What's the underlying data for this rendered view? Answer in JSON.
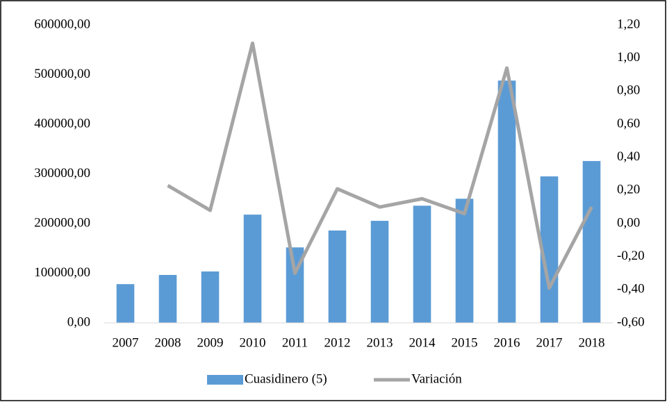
{
  "chart_data": {
    "type": "bar_line",
    "categories": [
      "2007",
      "2008",
      "2009",
      "2010",
      "2011",
      "2012",
      "2013",
      "2014",
      "2015",
      "2016",
      "2017",
      "2018"
    ],
    "series": [
      {
        "name": "Cuasidinero (5)",
        "type": "bar",
        "color": "#5b9bd5",
        "values": [
          78000,
          96500,
          103500,
          218000,
          152000,
          186000,
          205500,
          236000,
          250000,
          488000,
          295000,
          326000
        ]
      },
      {
        "name": "Variación",
        "type": "line",
        "axis": "y2",
        "color": "#a5a5a5",
        "values": [
          null,
          0.23,
          0.08,
          1.09,
          -0.3,
          0.21,
          0.1,
          0.15,
          0.06,
          0.94,
          -0.39,
          0.1
        ]
      }
    ],
    "ylim": [
      0,
      600000
    ],
    "yticks": [
      {
        "value": 0,
        "label": "0,00"
      },
      {
        "value": 100000,
        "label": "100000,00"
      },
      {
        "value": 200000,
        "label": "200000,00"
      },
      {
        "value": 300000,
        "label": "300000,00"
      },
      {
        "value": 400000,
        "label": "400000,00"
      },
      {
        "value": 500000,
        "label": "500000,00"
      },
      {
        "value": 600000,
        "label": "600000,00"
      }
    ],
    "y2lim": [
      -0.6,
      1.2
    ],
    "y2ticks": [
      {
        "value": -0.6,
        "label": "-0,60"
      },
      {
        "value": -0.4,
        "label": "-0,40"
      },
      {
        "value": -0.2,
        "label": "-0,20"
      },
      {
        "value": 0,
        "label": "0,00"
      },
      {
        "value": 0.2,
        "label": "0,20"
      },
      {
        "value": 0.4,
        "label": "0,40"
      },
      {
        "value": 0.6,
        "label": "0,60"
      },
      {
        "value": 0.8,
        "label": "0,80"
      },
      {
        "value": 1.0,
        "label": "1,00"
      },
      {
        "value": 1.2,
        "label": "1,20"
      }
    ],
    "grid": false,
    "legend": "bottom"
  }
}
